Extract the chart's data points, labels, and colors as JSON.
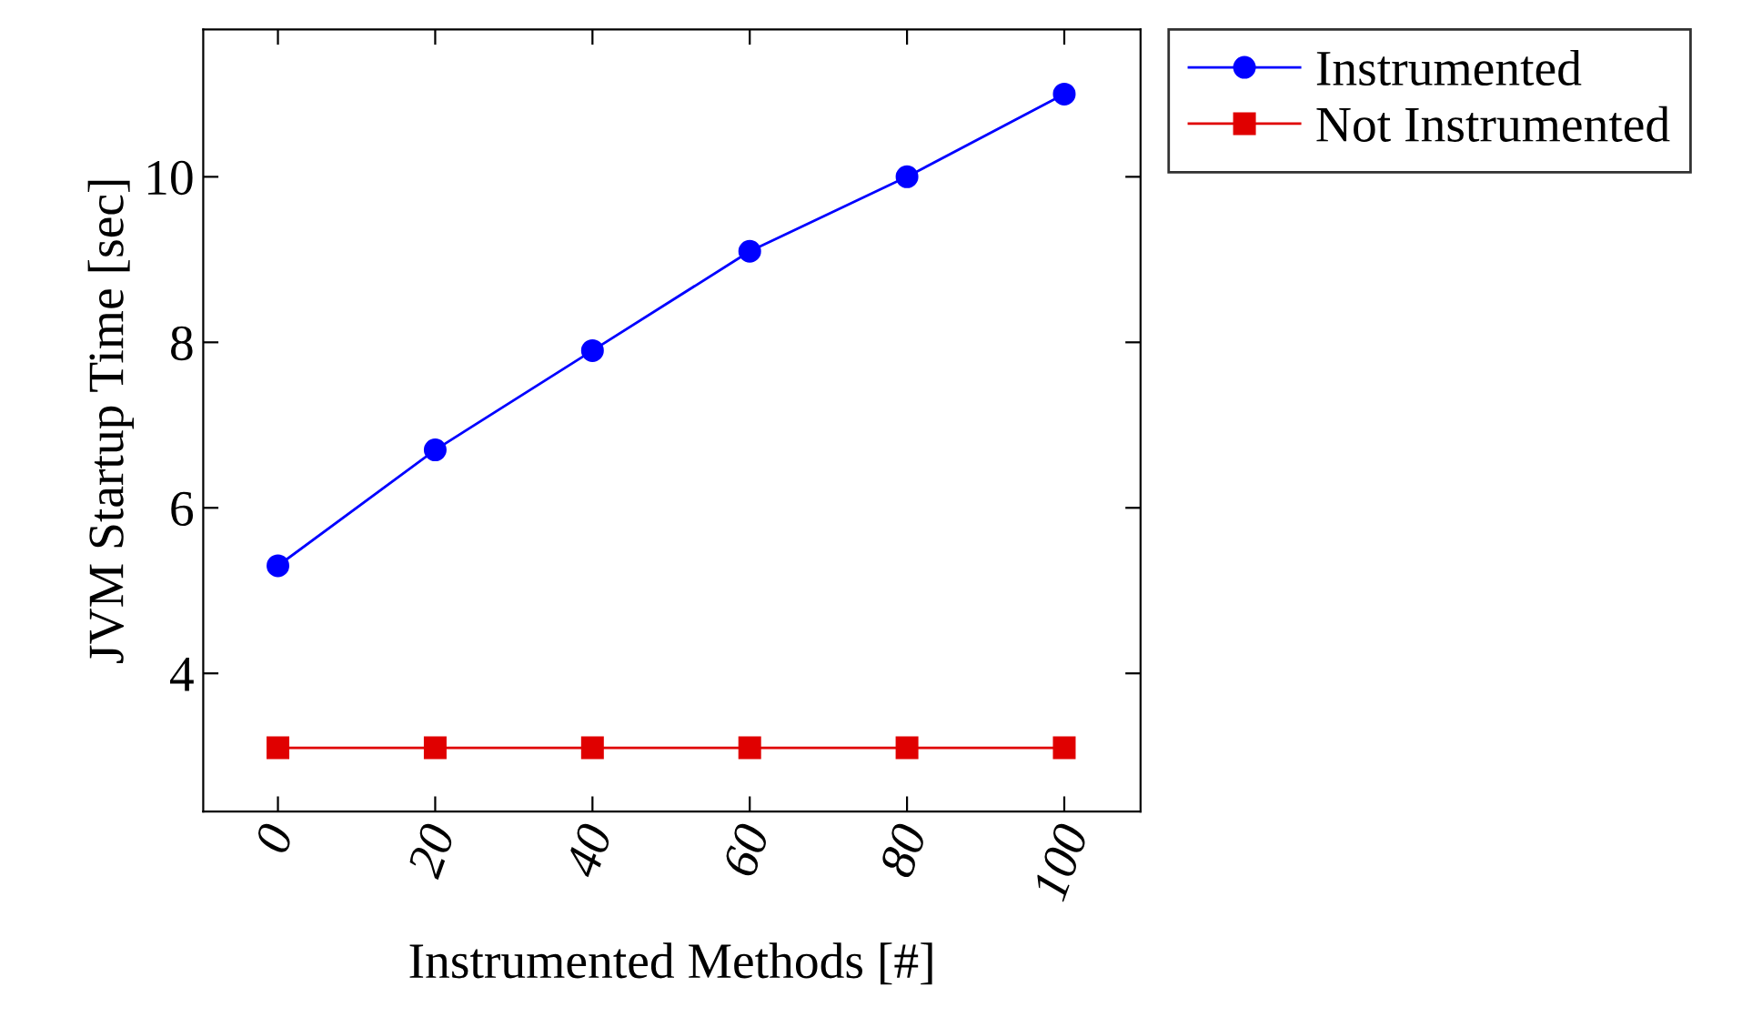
{
  "chart_data": {
    "type": "line",
    "xlabel": "Instrumented Methods [#]",
    "ylabel": "JVM Startup Time [sec]",
    "x": [
      0,
      20,
      40,
      60,
      80,
      100
    ],
    "series": [
      {
        "name": "Instrumented",
        "color": "#0000ff",
        "marker": "circle",
        "values": [
          5.3,
          6.7,
          7.9,
          9.1,
          10.0,
          11.0
        ]
      },
      {
        "name": "Not Instrumented",
        "color": "#e00000",
        "marker": "square",
        "values": [
          3.1,
          3.1,
          3.1,
          3.1,
          3.1,
          3.1
        ]
      }
    ],
    "xlim": [
      -9.5,
      109.7
    ],
    "ylim": [
      2.33,
      11.78
    ],
    "xticks": [
      0,
      20,
      40,
      60,
      80,
      100
    ],
    "yticks": [
      4,
      6,
      8,
      10
    ],
    "grid": false,
    "legend": "top right",
    "line_style": "solid"
  }
}
